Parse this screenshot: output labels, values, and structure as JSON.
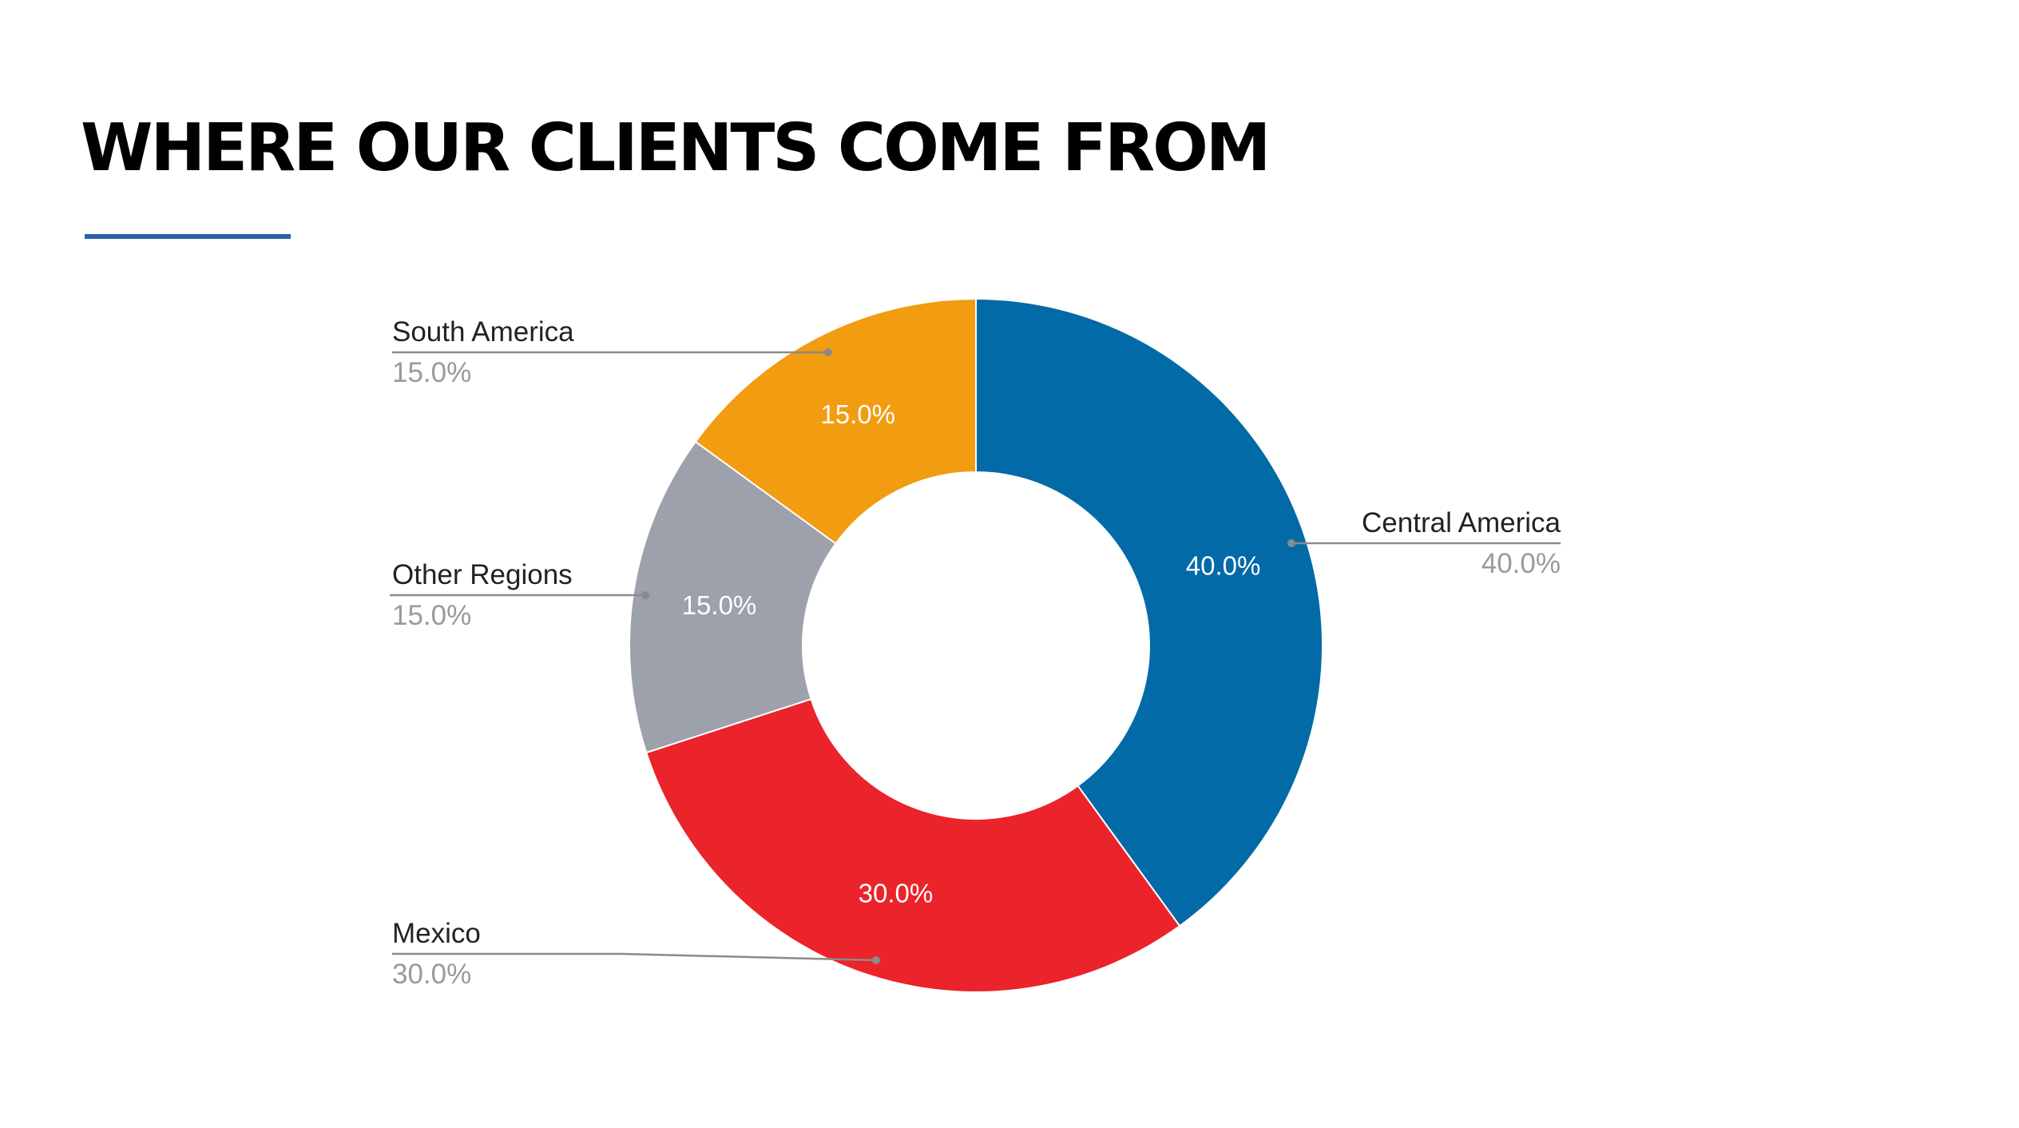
{
  "slide": {
    "title": "WHERE OUR CLIENTS COME FROM",
    "accent_color": "#2f5fa7"
  },
  "chart_data": {
    "type": "pie",
    "donut": true,
    "slices": [
      {
        "label": "Central America",
        "value": 40.0,
        "value_label": "40.0%",
        "color": "#026aa7"
      },
      {
        "label": "Mexico",
        "value": 30.0,
        "value_label": "30.0%",
        "color": "#eb232b"
      },
      {
        "label": "Other Regions",
        "value": 15.0,
        "value_label": "15.0%",
        "color": "#9ca1ac"
      },
      {
        "label": "South America",
        "value": 15.0,
        "value_label": "15.0%",
        "color": "#f29c11"
      }
    ],
    "legend": "callouts"
  }
}
